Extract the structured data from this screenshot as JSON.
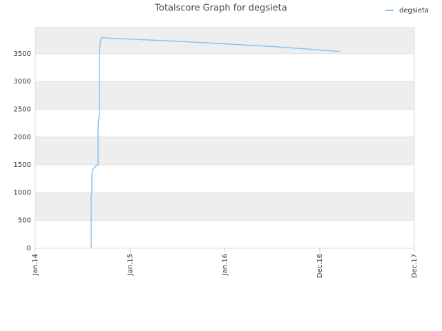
{
  "chart_data": {
    "type": "line",
    "title": "Totalscore Graph for degsieta",
    "x": [
      7.08,
      7.08,
      7.17,
      7.17,
      7.26,
      7.78,
      7.96,
      7.96,
      8.13,
      8.13,
      8.21,
      8.39,
      9.35,
      20,
      30,
      38.55
    ],
    "series": [
      {
        "name": "degsieta",
        "color": "#88c4f0",
        "values": [
          0,
          950,
          1000,
          1300,
          1420,
          1490,
          1500,
          2250,
          2400,
          3450,
          3700,
          3790,
          3780,
          3710,
          3630,
          3540
        ]
      }
    ],
    "xlim": [
      0,
      48
    ],
    "xticks": [
      {
        "value": 0,
        "label": "Jan.14"
      },
      {
        "value": 12,
        "label": "Jan.15"
      },
      {
        "value": 24,
        "label": "Jan.16"
      },
      {
        "value": 36,
        "label": "Dec.16"
      },
      {
        "value": 48,
        "label": "Dec.17"
      }
    ],
    "ylim": [
      0,
      3970
    ],
    "yticks": [
      0,
      500,
      1000,
      1500,
      2000,
      2500,
      3000,
      3500
    ],
    "grid": true,
    "legend": "top-right"
  }
}
